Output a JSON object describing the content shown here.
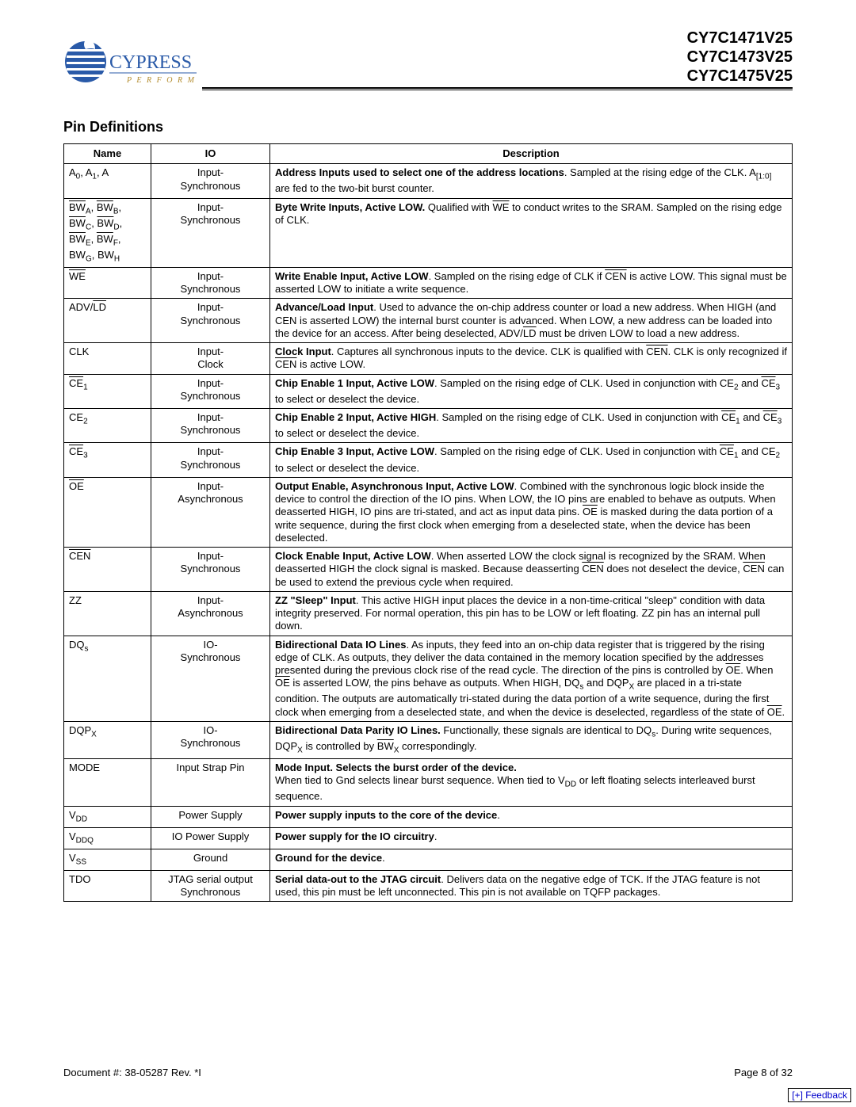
{
  "brand": {
    "name": "CYPRESS",
    "tagline": "P E R F O R M",
    "logo_fill_color": "#2a5aa8",
    "text_color": "#b28a2a"
  },
  "part_numbers": [
    "CY7C1471V25",
    "CY7C1473V25",
    "CY7C1475V25"
  ],
  "section_title": "Pin Definitions",
  "table": {
    "headers": [
      "Name",
      "IO",
      "Description"
    ],
    "rows": [
      {
        "name_html": "A<span class='sub'>0</span>, A<span class='sub'>1</span>, A",
        "io": "Input-\nSynchronous",
        "desc_html": "<span class='b'>Address Inputs used to select one of the address locations</span>. Sampled at the rising edge of the CLK. A<span class='sub'>[1:0]</span> are fed to the two-bit burst counter."
      },
      {
        "name_html": "<span class='ol'>BW</span><span class='sub'>A</span>, <span class='ol'>BW</span><span class='sub'>B</span>,<br><span class='ol'>BW</span><span class='sub'>C</span>, <span class='ol'>BW</span><span class='sub'>D</span>,<br><span class='ol'>BW</span><span class='sub'>E</span>, <span class='ol'>BW</span><span class='sub'>F</span>,<br>BW<span class='sub'>G</span>, BW<span class='sub'>H</span>",
        "io": "Input-\nSynchronous",
        "desc_html": "<span class='b'>Byte Write Inputs, Active LOW.</span> Qualified with <span class='ol'>WE</span> to conduct writes to the SRAM. Sampled on the rising edge of CLK."
      },
      {
        "name_html": "<span class='ol'>WE</span>",
        "io": "Input-\nSynchronous",
        "desc_html": "<span class='b'>Write Enable Input, Active LOW</span>. Sampled on the rising edge of CLK if <span class='ol'>CEN</span> is active LOW. This signal must be asserted LOW to initiate a write sequence."
      },
      {
        "name_html": "ADV/<span class='ol'>LD</span>",
        "io": "Input-\nSynchronous",
        "desc_html": "<span class='b'>Advance/Load Input</span>. Used to advance the on-chip address counter or load a new address. When HIGH (and CEN is asserted LOW) the internal burst counter is advanced. When LOW, a new address can be loaded into the device for an access. After being deselected, ADV/<span class='ol'>LD</span> must be driven LOW to load a new address."
      },
      {
        "name_html": "CLK",
        "io": "Input-\nClock",
        "desc_html": "<span class='b'>Clock Input</span>. Captures all synchronous inputs to the device. CLK is qualified with <span class='ol'>CEN</span>. CLK is only recognized if <span class='ol'>CEN</span> is active LOW."
      },
      {
        "name_html": "<span class='ol'>CE</span><span class='sub'>1</span>",
        "io": "Input-\nSynchronous",
        "desc_html": "<span class='b'>Chip Enable 1 Input, Active LOW</span>. Sampled on the rising edge of CLK. Used in conjunction with CE<span class='sub'>2</span> and <span class='ol'>CE</span><span class='sub'>3</span> to select or deselect the device."
      },
      {
        "name_html": "CE<span class='sub'>2</span>",
        "io": "Input-\nSynchronous",
        "desc_html": "<span class='b'>Chip Enable 2 Input, Active HIGH</span>. Sampled on the rising edge of CLK. Used in conjunction with <span class='ol'>CE</span><span class='sub'>1</span> and <span class='ol'>CE</span><span class='sub'>3</span> to select or deselect the device."
      },
      {
        "name_html": "<span class='ol'>CE</span><span class='sub'>3</span>",
        "io": "Input-\nSynchronous",
        "desc_html": "<span class='b'>Chip Enable 3 Input, Active LOW</span>. Sampled on the rising edge of CLK. Used in conjunction with <span class='ol'>CE</span><span class='sub'>1</span> and CE<span class='sub'>2</span> to select or deselect the device."
      },
      {
        "name_html": "<span class='ol'>OE</span>",
        "io": "Input-\nAsynchronous",
        "desc_html": "<span class='b'>Output Enable, Asynchronous Input, Active LOW</span>. Combined with the synchronous logic block inside the device to control the direction of the IO pins. When LOW, the IO pins are enabled to behave as outputs. When deasserted HIGH, IO pins are tri-stated, and act as input data pins. <span class='ol'>OE</span> is masked during the data portion of a write sequence, during the first clock when emerging from a deselected state, when the device has been deselected."
      },
      {
        "name_html": "<span class='ol'>CEN</span>",
        "io": "Input-\nSynchronous",
        "desc_html": "<span class='b'>Clock Enable Input, Active LOW</span>. When asserted LOW the clock signal is recognized by the SRAM. When deasserted HIGH the clock signal is masked. Because deasserting <span class='ol'>CEN</span> does not deselect the device, <span class='ol'>CEN</span> can be used to extend the previous cycle when required."
      },
      {
        "name_html": "ZZ",
        "io": "Input-\nAsynchronous",
        "desc_html": "<span class='b'>ZZ \"Sleep\" Input</span>. This active HIGH input places the device in a non-time-critical \"sleep\" condition with data integrity preserved. For normal operation, this pin has to be LOW or left floating. ZZ pin has an internal pull down."
      },
      {
        "name_html": "DQ<span class='sub'>s</span>",
        "io": "IO-\nSynchronous",
        "desc_html": "<span class='b'>Bidirectional Data IO Lines</span>. As inputs, they feed into an on-chip data register that is triggered by the rising edge of CLK. As outputs, they deliver the data contained in the memory location specified by the addresses presented during the previous clock rise of the read cycle. The direction of the pins is controlled by <span class='ol'>OE</span>. When <span class='ol'>OE</span> is asserted LOW, the pins behave as outputs. When HIGH, DQ<span class='sub'>s</span> and DQP<span class='sub'>X</span> are placed in a tri-state condition. The outputs are automatically tri-stated during the data portion of a write sequence, during the first clock when emerging from a deselected state, and when the device is deselected, regardless of the state of <span class='ol'>OE</span>."
      },
      {
        "name_html": "DQP<span class='sub'>X</span>",
        "io": "IO-\nSynchronous",
        "desc_html": "<span class='b'>Bidirectional Data Parity IO Lines.</span> Functionally, these signals are identical to DQ<span class='sub'>s</span>. During write sequences, DQP<span class='sub'>X</span> is controlled by <span class='ol'>BW</span><span class='sub'>X</span> correspondingly."
      },
      {
        "name_html": "MODE",
        "io": "Input Strap Pin",
        "desc_html": "<span class='b'>Mode Input. Selects the burst order of the device.</span><br>When tied to Gnd selects linear burst sequence. When tied to V<span class='sub'>DD</span> or left floating selects interleaved burst sequence."
      },
      {
        "name_html": "V<span class='sub'>DD</span>",
        "io": "Power Supply",
        "desc_html": "<span class='b'>Power supply inputs to the core of the device</span>."
      },
      {
        "name_html": "V<span class='sub'>DDQ</span>",
        "io": "IO Power Supply",
        "desc_html": "<span class='b'>Power supply for the IO circuitry</span>."
      },
      {
        "name_html": "V<span class='sub'>SS</span>",
        "io": "Ground",
        "desc_html": "<span class='b'>Ground for the device</span>."
      },
      {
        "name_html": "TDO",
        "io": "JTAG serial output\nSynchronous",
        "desc_html": "<span class='b'>Serial data-out to the JTAG circuit</span>. Delivers data on the negative edge of TCK. If the JTAG feature is not used, this pin must be left unconnected. This pin is not available on TQFP packages."
      }
    ]
  },
  "footer": {
    "doc_number": "Document #: 38-05287 Rev. *I",
    "page_label": "Page 8 of 32"
  },
  "feedback_label": "[+] Feedback"
}
